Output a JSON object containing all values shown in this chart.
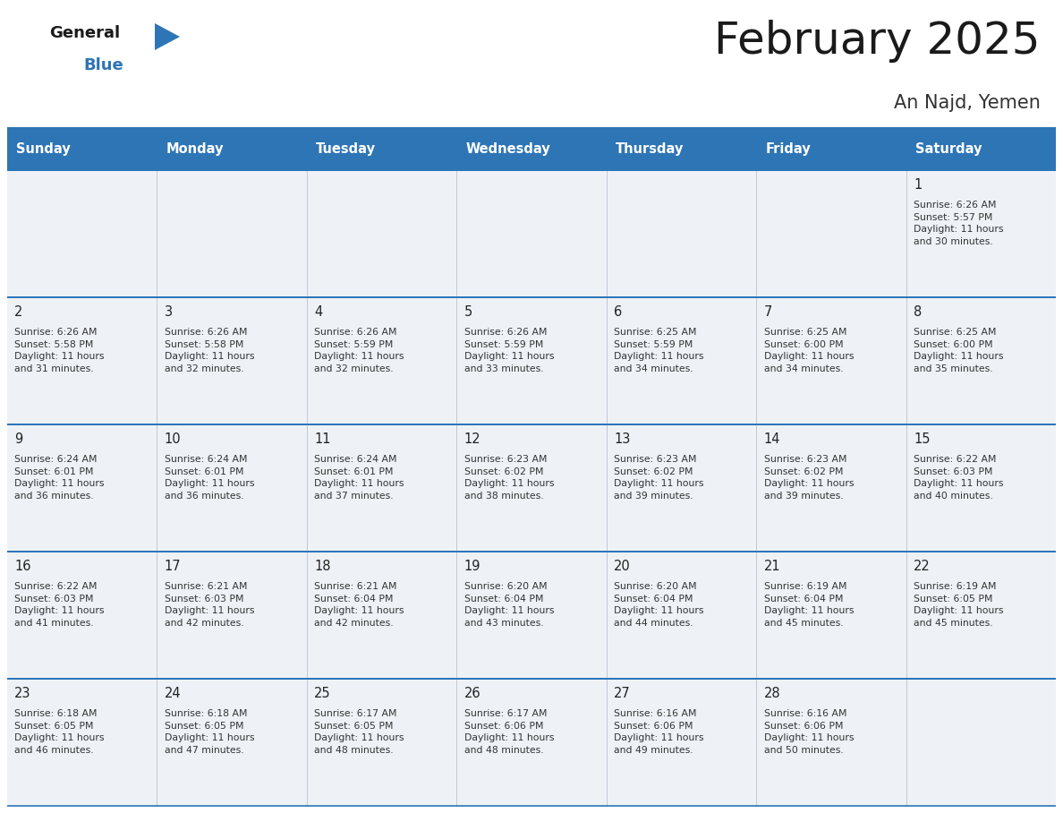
{
  "title": "February 2025",
  "subtitle": "An Najd, Yemen",
  "header_color": "#2e75b6",
  "header_text_color": "#ffffff",
  "day_names": [
    "Sunday",
    "Monday",
    "Tuesday",
    "Wednesday",
    "Thursday",
    "Friday",
    "Saturday"
  ],
  "background_color": "#ffffff",
  "cell_bg": "#eef2f7",
  "border_color": "#2e75b6",
  "day_number_color": "#222222",
  "cell_text_color": "#333333",
  "calendar": [
    [
      null,
      null,
      null,
      null,
      null,
      null,
      {
        "day": 1,
        "sunrise": "6:26 AM",
        "sunset": "5:57 PM",
        "daylight": "11 hours and 30 minutes."
      }
    ],
    [
      {
        "day": 2,
        "sunrise": "6:26 AM",
        "sunset": "5:58 PM",
        "daylight": "11 hours and 31 minutes."
      },
      {
        "day": 3,
        "sunrise": "6:26 AM",
        "sunset": "5:58 PM",
        "daylight": "11 hours and 32 minutes."
      },
      {
        "day": 4,
        "sunrise": "6:26 AM",
        "sunset": "5:59 PM",
        "daylight": "11 hours and 32 minutes."
      },
      {
        "day": 5,
        "sunrise": "6:26 AM",
        "sunset": "5:59 PM",
        "daylight": "11 hours and 33 minutes."
      },
      {
        "day": 6,
        "sunrise": "6:25 AM",
        "sunset": "5:59 PM",
        "daylight": "11 hours and 34 minutes."
      },
      {
        "day": 7,
        "sunrise": "6:25 AM",
        "sunset": "6:00 PM",
        "daylight": "11 hours and 34 minutes."
      },
      {
        "day": 8,
        "sunrise": "6:25 AM",
        "sunset": "6:00 PM",
        "daylight": "11 hours and 35 minutes."
      }
    ],
    [
      {
        "day": 9,
        "sunrise": "6:24 AM",
        "sunset": "6:01 PM",
        "daylight": "11 hours and 36 minutes."
      },
      {
        "day": 10,
        "sunrise": "6:24 AM",
        "sunset": "6:01 PM",
        "daylight": "11 hours and 36 minutes."
      },
      {
        "day": 11,
        "sunrise": "6:24 AM",
        "sunset": "6:01 PM",
        "daylight": "11 hours and 37 minutes."
      },
      {
        "day": 12,
        "sunrise": "6:23 AM",
        "sunset": "6:02 PM",
        "daylight": "11 hours and 38 minutes."
      },
      {
        "day": 13,
        "sunrise": "6:23 AM",
        "sunset": "6:02 PM",
        "daylight": "11 hours and 39 minutes."
      },
      {
        "day": 14,
        "sunrise": "6:23 AM",
        "sunset": "6:02 PM",
        "daylight": "11 hours and 39 minutes."
      },
      {
        "day": 15,
        "sunrise": "6:22 AM",
        "sunset": "6:03 PM",
        "daylight": "11 hours and 40 minutes."
      }
    ],
    [
      {
        "day": 16,
        "sunrise": "6:22 AM",
        "sunset": "6:03 PM",
        "daylight": "11 hours and 41 minutes."
      },
      {
        "day": 17,
        "sunrise": "6:21 AM",
        "sunset": "6:03 PM",
        "daylight": "11 hours and 42 minutes."
      },
      {
        "day": 18,
        "sunrise": "6:21 AM",
        "sunset": "6:04 PM",
        "daylight": "11 hours and 42 minutes."
      },
      {
        "day": 19,
        "sunrise": "6:20 AM",
        "sunset": "6:04 PM",
        "daylight": "11 hours and 43 minutes."
      },
      {
        "day": 20,
        "sunrise": "6:20 AM",
        "sunset": "6:04 PM",
        "daylight": "11 hours and 44 minutes."
      },
      {
        "day": 21,
        "sunrise": "6:19 AM",
        "sunset": "6:04 PM",
        "daylight": "11 hours and 45 minutes."
      },
      {
        "day": 22,
        "sunrise": "6:19 AM",
        "sunset": "6:05 PM",
        "daylight": "11 hours and 45 minutes."
      }
    ],
    [
      {
        "day": 23,
        "sunrise": "6:18 AM",
        "sunset": "6:05 PM",
        "daylight": "11 hours and 46 minutes."
      },
      {
        "day": 24,
        "sunrise": "6:18 AM",
        "sunset": "6:05 PM",
        "daylight": "11 hours and 47 minutes."
      },
      {
        "day": 25,
        "sunrise": "6:17 AM",
        "sunset": "6:05 PM",
        "daylight": "11 hours and 48 minutes."
      },
      {
        "day": 26,
        "sunrise": "6:17 AM",
        "sunset": "6:06 PM",
        "daylight": "11 hours and 48 minutes."
      },
      {
        "day": 27,
        "sunrise": "6:16 AM",
        "sunset": "6:06 PM",
        "daylight": "11 hours and 49 minutes."
      },
      {
        "day": 28,
        "sunrise": "6:16 AM",
        "sunset": "6:06 PM",
        "daylight": "11 hours and 50 minutes."
      },
      null
    ]
  ]
}
